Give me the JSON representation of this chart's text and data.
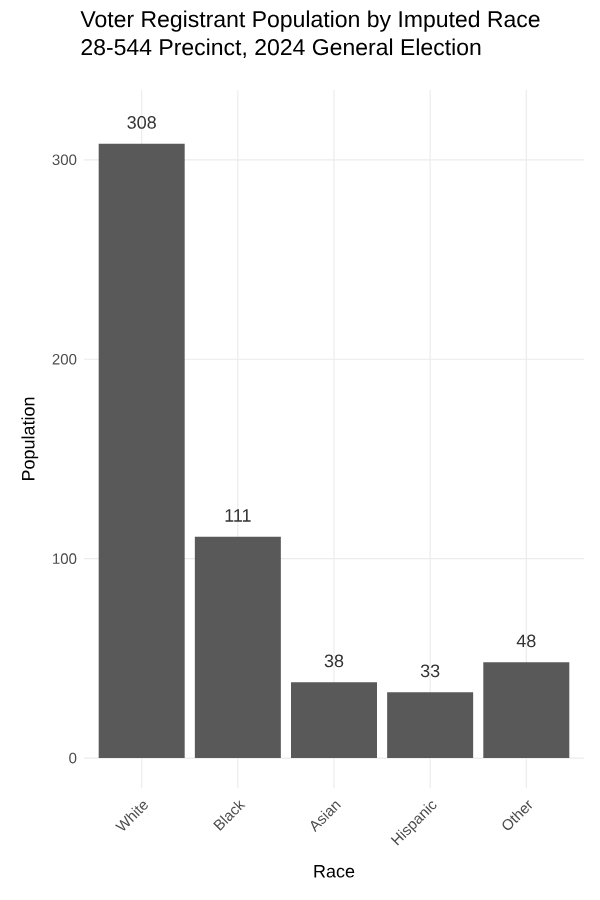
{
  "chart_data": {
    "type": "bar",
    "title": "Voter Registrant Population by Imputed Race",
    "subtitle": "28-544 Precinct,  2024 General Election",
    "xlabel": "Race",
    "ylabel": "Population",
    "categories": [
      "White",
      "Black",
      "Asian",
      "Hispanic",
      "Other"
    ],
    "values": [
      308,
      111,
      38,
      33,
      48
    ],
    "color": "#595959",
    "data_labels": true,
    "ylim": [
      -15,
      335
    ],
    "yticks": [
      0,
      100,
      200,
      300
    ],
    "grid": true
  }
}
